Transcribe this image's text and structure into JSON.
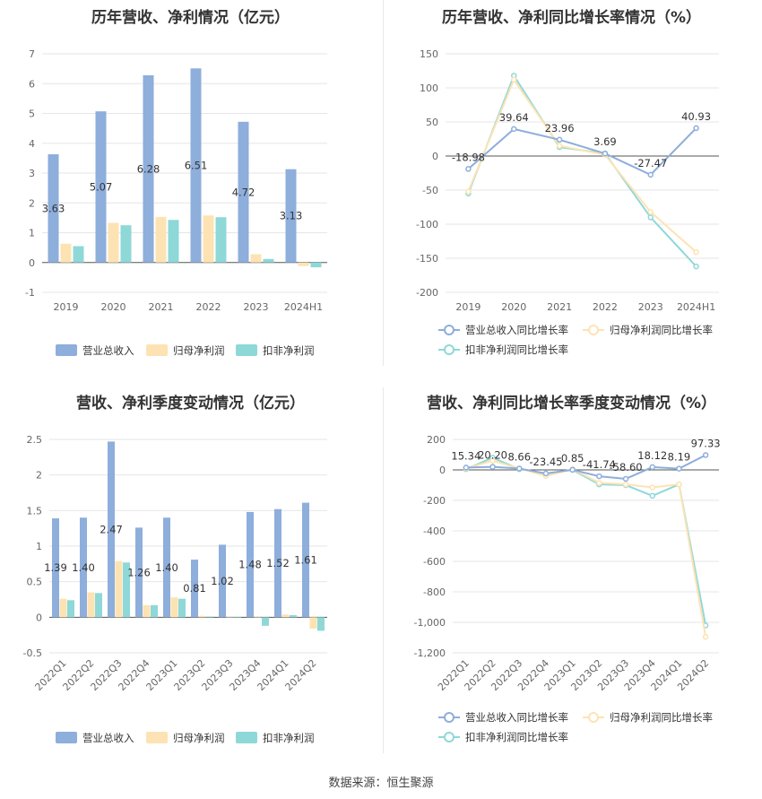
{
  "footer": {
    "source": "数据来源：恒生聚源"
  },
  "chart_data": [
    {
      "type": "bar",
      "title": "历年营收、净利情况（亿元）",
      "categories": [
        "2019",
        "2020",
        "2021",
        "2022",
        "2023",
        "2024H1"
      ],
      "ylim": [
        -1,
        7
      ],
      "yticks": [
        -1,
        0,
        1,
        2,
        3,
        4,
        5,
        6,
        7
      ],
      "series": [
        {
          "name": "营业总收入",
          "color": "#8eaedb",
          "values": [
            3.63,
            5.07,
            6.28,
            6.51,
            4.72,
            3.13
          ],
          "labels": [
            "3.63",
            "5.07",
            "6.28",
            "6.51",
            "4.72",
            "3.13"
          ]
        },
        {
          "name": "归母净利润",
          "color": "#fde3b3",
          "values": [
            0.63,
            1.33,
            1.53,
            1.58,
            0.28,
            -0.12
          ]
        },
        {
          "name": "扣非净利润",
          "color": "#8fd8d8",
          "values": [
            0.55,
            1.25,
            1.43,
            1.52,
            0.12,
            -0.16
          ]
        }
      ],
      "grid": true,
      "legend": "bottom"
    },
    {
      "type": "line",
      "title": "历年营收、净利同比增长率情况（%）",
      "categories": [
        "2019",
        "2020",
        "2021",
        "2022",
        "2023",
        "2024H1"
      ],
      "ylim": [
        -200,
        150
      ],
      "yticks": [
        -200,
        -150,
        -100,
        -50,
        0,
        50,
        100,
        150
      ],
      "series": [
        {
          "name": "营业总收入同比增长率",
          "color": "#8eaedb",
          "values": [
            -18.98,
            39.64,
            23.96,
            3.69,
            -27.47,
            40.93
          ],
          "labels": [
            "-18.98",
            "39.64",
            "23.96",
            "3.69",
            "-27.47",
            "40.93"
          ]
        },
        {
          "name": "归母净利润同比增长率",
          "color": "#fde3b3",
          "values": [
            -52,
            112,
            15,
            2,
            -82,
            -141
          ]
        },
        {
          "name": "扣非净利润同比增长率",
          "color": "#8fd8d8",
          "values": [
            -55,
            118,
            13,
            4,
            -90,
            -162
          ]
        }
      ],
      "grid": true,
      "legend": "bottom"
    },
    {
      "type": "bar",
      "title": "营收、净利季度变动情况（亿元）",
      "categories": [
        "2022Q1",
        "2022Q2",
        "2022Q3",
        "2022Q4",
        "2023Q1",
        "2023Q2",
        "2023Q3",
        "2023Q4",
        "2024Q1",
        "2024Q2"
      ],
      "ylim": [
        -0.5,
        2.5
      ],
      "yticks": [
        -0.5,
        0,
        0.5,
        1,
        1.5,
        2,
        2.5
      ],
      "series": [
        {
          "name": "营业总收入",
          "color": "#8eaedb",
          "values": [
            1.39,
            1.4,
            2.47,
            1.26,
            1.4,
            0.81,
            1.02,
            1.48,
            1.52,
            1.61
          ],
          "labels": [
            "1.39",
            "1.40",
            "2.47",
            "1.26",
            "1.40",
            "0.81",
            "1.02",
            "1.48",
            "1.52",
            "1.61"
          ]
        },
        {
          "name": "归母净利润",
          "color": "#fde3b3",
          "values": [
            0.26,
            0.35,
            0.79,
            0.17,
            0.28,
            0.02,
            0.0,
            0.0,
            0.04,
            -0.16
          ]
        },
        {
          "name": "扣非净利润",
          "color": "#8fd8d8",
          "values": [
            0.24,
            0.34,
            0.77,
            0.17,
            0.26,
            0.01,
            -0.01,
            -0.12,
            0.03,
            -0.19
          ]
        }
      ],
      "grid": true,
      "legend": "bottom"
    },
    {
      "type": "line",
      "title": "营收、净利同比增长率季度变动情况（%）",
      "categories": [
        "2022Q1",
        "2022Q2",
        "2022Q3",
        "2022Q4",
        "2023Q1",
        "2023Q2",
        "2023Q3",
        "2023Q4",
        "2024Q1",
        "2024Q2"
      ],
      "ylim": [
        -1200,
        200
      ],
      "yticks": [
        -1200,
        -1000,
        -800,
        -600,
        -400,
        -200,
        0,
        200
      ],
      "yticklabels": [
        "-1,200",
        "-1,000",
        "-800",
        "-600",
        "-400",
        "-200",
        "0",
        "200"
      ],
      "series": [
        {
          "name": "营业总收入同比增长率",
          "color": "#8eaedb",
          "values": [
            15.34,
            20.2,
            8.66,
            -23.45,
            0.85,
            -41.74,
            -58.6,
            18.12,
            8.19,
            97.33
          ],
          "labels": [
            "15.34",
            "20.20",
            "8.66",
            "-23.45",
            "0.85",
            "-41.74",
            "-58.60",
            "18.12",
            "8.19",
            "97.33"
          ]
        },
        {
          "name": "归母净利润同比增长率",
          "color": "#fde3b3",
          "values": [
            10,
            60,
            10,
            -40,
            5,
            -85,
            -95,
            -115,
            -95,
            -1095
          ]
        },
        {
          "name": "扣非净利润同比增长率",
          "color": "#8fd8d8",
          "values": [
            5,
            80,
            5,
            -25,
            0,
            -95,
            -100,
            -170,
            -95,
            -1020
          ]
        }
      ],
      "grid": true,
      "legend": "bottom"
    }
  ]
}
